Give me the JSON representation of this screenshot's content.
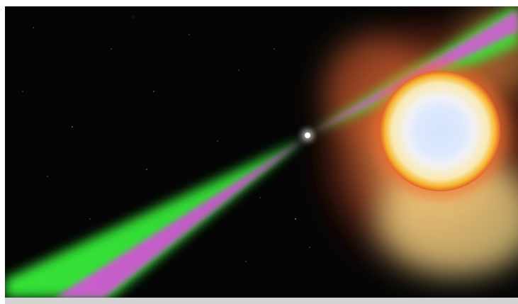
{
  "scene": {
    "subject": "pulsar-with-companion-star",
    "colors": {
      "space": "#050505",
      "beam_outer": "#39f03a",
      "beam_inner": "#d35ad6",
      "companion_core": "#dbe8ff",
      "companion_rim": "#f6c23a",
      "nebula": "#e07a3c",
      "bottom_bar": "#d4d4d4"
    }
  }
}
